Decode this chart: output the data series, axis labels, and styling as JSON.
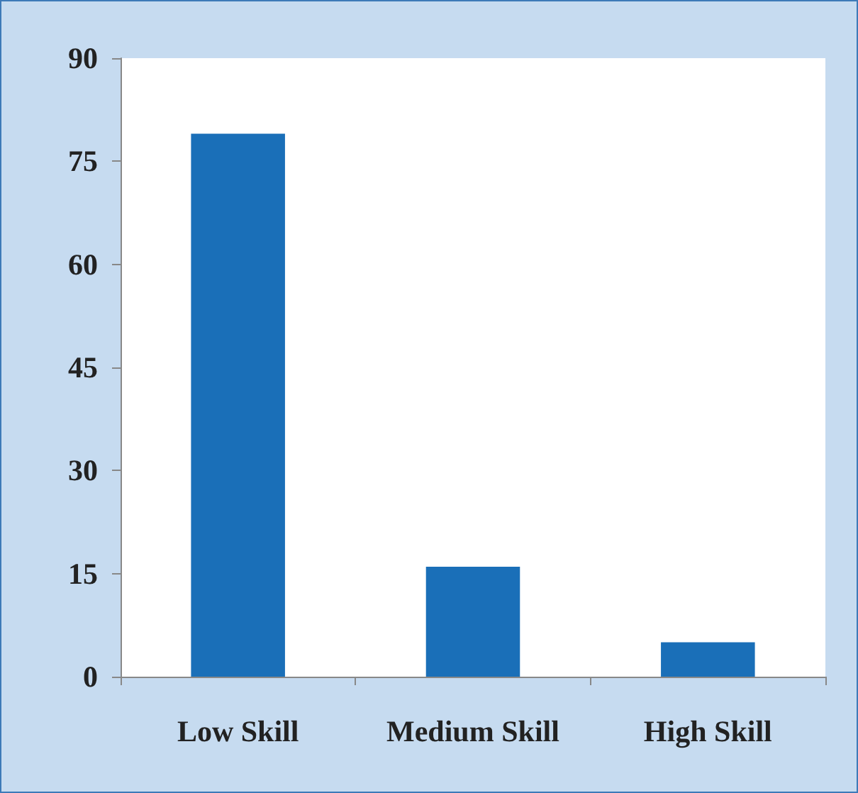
{
  "chart_data": {
    "type": "bar",
    "categories": [
      "Low Skill",
      "Medium Skill",
      "High Skill"
    ],
    "values": [
      79,
      16,
      5
    ],
    "color": "#1a6fb8",
    "ylim": [
      0,
      90
    ],
    "yticks": [
      0,
      15,
      30,
      45,
      60,
      75,
      90
    ],
    "grid": false
  }
}
